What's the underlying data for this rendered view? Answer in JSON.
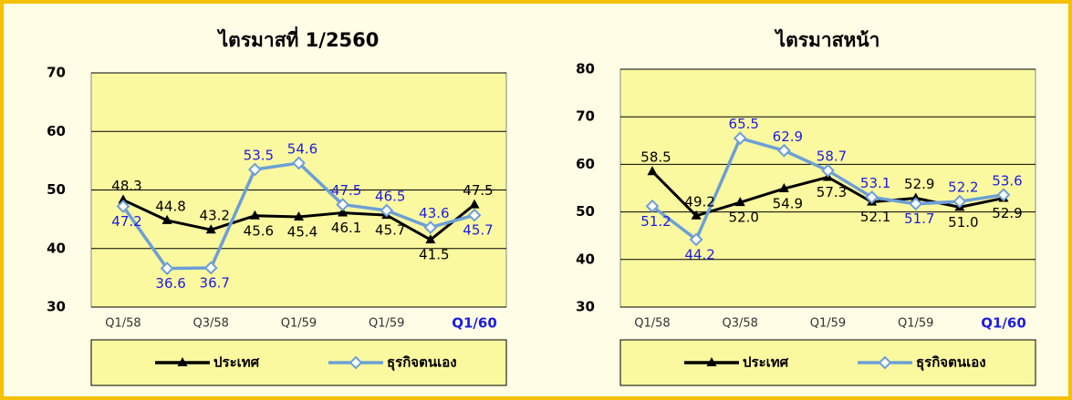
{
  "chart_data": [
    {
      "type": "line",
      "title": "ไตรมาสที่ 1/2560",
      "categories": [
        "Q1/58",
        null,
        "Q3/58",
        null,
        "Q1/59",
        null,
        "Q1/59",
        null,
        "Q1/60"
      ],
      "ylim": [
        30,
        70
      ],
      "yticks": [
        30,
        40,
        50,
        60,
        70
      ],
      "grid": true,
      "series": [
        {
          "name": "ประเทศ",
          "color": "#000000",
          "label_color": "#000000",
          "marker": "triangle",
          "values": [
            48.3,
            44.8,
            43.2,
            45.6,
            45.4,
            46.1,
            45.7,
            41.5,
            47.5
          ],
          "value_labels": [
            "48.3",
            "44.8",
            "43.2",
            "45.6",
            "45.4",
            "46.1",
            "45.7",
            "41.5",
            "47.5"
          ]
        },
        {
          "name": "ธุรกิจตนเอง",
          "color": "#6c9fd6",
          "label_color": "#1c1ce0",
          "marker": "diamond",
          "values": [
            47.2,
            36.6,
            36.7,
            53.5,
            54.6,
            47.5,
            46.5,
            43.6,
            45.7
          ],
          "value_labels": [
            "47.2",
            "36.6",
            "36.7",
            "53.5",
            "54.6",
            "47.5",
            "46.5",
            "43.6",
            "45.7"
          ]
        }
      ]
    },
    {
      "type": "line",
      "title": "ไตรมาสหน้า",
      "categories": [
        "Q1/58",
        null,
        "Q3/58",
        null,
        "Q1/59",
        null,
        "Q1/59",
        null,
        "Q1/60"
      ],
      "ylim": [
        30,
        80
      ],
      "yticks": [
        30,
        40,
        50,
        60,
        70,
        80
      ],
      "grid": true,
      "series": [
        {
          "name": "ประเทศ",
          "color": "#000000",
          "label_color": "#000000",
          "marker": "triangle",
          "values": [
            58.5,
            49.2,
            52.0,
            54.9,
            57.3,
            52.1,
            52.9,
            51.0,
            52.9
          ],
          "value_labels": [
            "58.5",
            "49.2",
            "52.0",
            "54.9",
            "57.3",
            "52.1",
            "52.9",
            "51.0",
            "52.9"
          ]
        },
        {
          "name": "ธุรกิจตนเอง",
          "color": "#6c9fd6",
          "label_color": "#1c1ce0",
          "marker": "diamond",
          "values": [
            51.2,
            44.2,
            65.5,
            62.9,
            58.7,
            53.1,
            51.7,
            52.2,
            53.6
          ],
          "value_labels": [
            "51.2",
            "44.2",
            "65.5",
            "62.9",
            "58.7",
            "53.1",
            "51.7",
            "52.2",
            "53.6"
          ]
        }
      ]
    }
  ]
}
